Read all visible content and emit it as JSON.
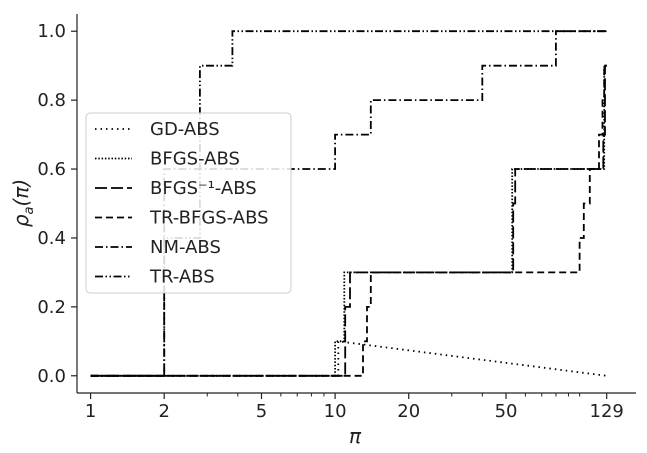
{
  "chart_data": {
    "type": "line",
    "title": "",
    "xlabel": "π",
    "ylabel": "ρ_a(π)",
    "xscale": "log",
    "xlim": [
      0.88,
      170
    ],
    "ylim": [
      -0.05,
      1.05
    ],
    "xticks": [
      1,
      2,
      5,
      10,
      20,
      50,
      129
    ],
    "xtick_labels": [
      "1",
      "2",
      "5",
      "10",
      "20",
      "50",
      "129"
    ],
    "yticks": [
      0.0,
      0.2,
      0.4,
      0.6,
      0.8,
      1.0
    ],
    "ytick_labels": [
      "0.0",
      "0.2",
      "0.4",
      "0.6",
      "0.8",
      "1.0"
    ],
    "grid": false,
    "legend_position": "center-left",
    "line_color": "#000000",
    "series": [
      {
        "name": "GD-ABS",
        "dash": "dotted",
        "x": [
          1,
          10.3,
          10.3,
          129
        ],
        "y": [
          0.0,
          0.0,
          0.1,
          0.0
        ]
      },
      {
        "name": "BFGS-ABS",
        "dash": "dotted-dense",
        "x": [
          1,
          10,
          10,
          10.9,
          10.9,
          53,
          53,
          126,
          126,
          129
        ],
        "y": [
          0.0,
          0.0,
          0.1,
          0.1,
          0.3,
          0.3,
          0.6,
          0.6,
          0.9,
          0.9
        ]
      },
      {
        "name": "BFGS⁻¹-ABS",
        "dash": "long-dash",
        "x": [
          1,
          11,
          11,
          11.5,
          11.5,
          12,
          12,
          53.5,
          53.5,
          54.5,
          54.5,
          125,
          125,
          127,
          127,
          129
        ],
        "y": [
          0.0,
          0.0,
          0.2,
          0.2,
          0.3,
          0.3,
          0.3,
          0.3,
          0.5,
          0.5,
          0.6,
          0.6,
          0.7,
          0.7,
          0.9,
          0.9
        ]
      },
      {
        "name": "TR-BFGS-ABS",
        "dash": "dashed",
        "x": [
          1,
          13,
          13,
          13.5,
          13.5,
          14,
          14,
          100,
          100,
          104,
          104,
          110,
          110,
          114,
          114,
          120,
          120,
          124,
          124,
          126,
          126,
          129
        ],
        "y": [
          0.0,
          0.0,
          0.1,
          0.1,
          0.2,
          0.2,
          0.3,
          0.3,
          0.4,
          0.4,
          0.5,
          0.5,
          0.6,
          0.6,
          0.6,
          0.6,
          0.7,
          0.7,
          0.8,
          0.8,
          0.9,
          0.9
        ]
      },
      {
        "name": "NM-ABS",
        "dash": "dash-dot",
        "x": [
          1,
          2,
          2,
          10,
          10,
          14,
          14,
          40,
          40,
          80,
          80,
          129
        ],
        "y": [
          0.0,
          0.0,
          0.6,
          0.6,
          0.7,
          0.7,
          0.8,
          0.8,
          0.9,
          0.9,
          1.0,
          1.0
        ]
      },
      {
        "name": "TR-ABS",
        "dash": "dash-dot-dot",
        "x": [
          1,
          2,
          2,
          2.8,
          2.8,
          3.8,
          3.8,
          129
        ],
        "y": [
          0.0,
          0.0,
          0.4,
          0.4,
          0.9,
          0.9,
          1.0,
          1.0
        ]
      }
    ]
  }
}
